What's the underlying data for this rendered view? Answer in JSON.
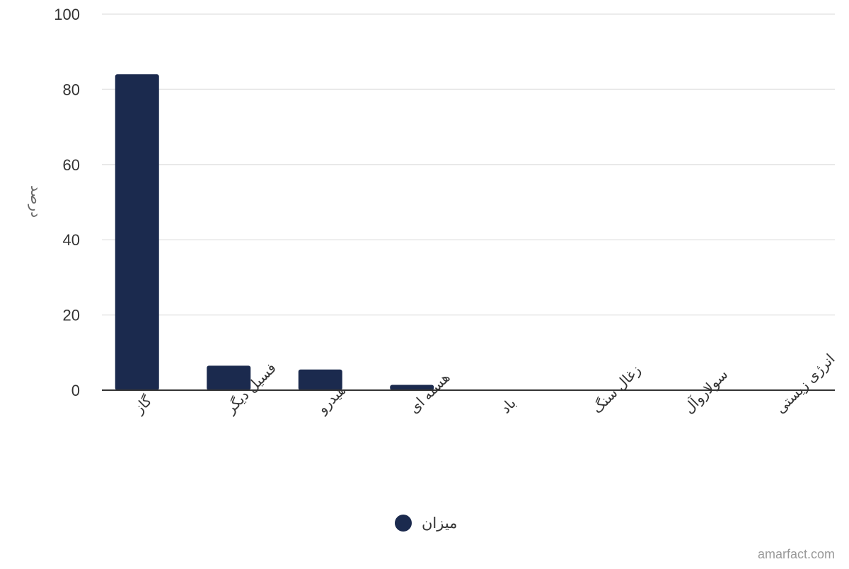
{
  "chart_data": {
    "type": "bar",
    "categories": [
      "گاز",
      "فسیل دیگر",
      "هیدرو",
      "هسته ای",
      "باد",
      "زغال سنگ",
      "سولاروآل",
      "انرژی زیستی"
    ],
    "series": [
      {
        "name": "میزان",
        "values": [
          84,
          6.5,
          5.5,
          1.4,
          0.05,
          0.05,
          0.05,
          0.05
        ],
        "color": "#1b2a4e"
      }
    ],
    "title": "",
    "xlabel": "",
    "ylabel": "درصد",
    "ylim": [
      0,
      100
    ],
    "yticks": [
      "0",
      "20",
      "40",
      "60",
      "80",
      "100"
    ],
    "grid": true,
    "legend_position": "bottom-center"
  },
  "credit": "amarfact.com",
  "colors": {
    "bar": "#1b2a4e",
    "grid": "#e6e6e6",
    "axis": "#333333"
  }
}
